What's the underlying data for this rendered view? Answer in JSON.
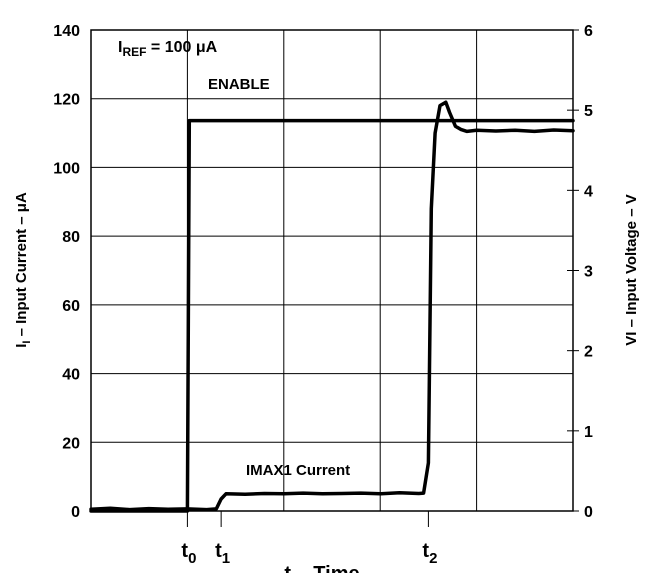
{
  "chart_data": {
    "type": "line",
    "ylabel_left_main": "I",
    "ylabel_left_sub": "I",
    "ylabel_left_rest": " – Input Current – μA",
    "ylabel_right": "VI – Input Voltage – V",
    "xlabel": "t – Time",
    "ylim_left": [
      0,
      140
    ],
    "ylim_right": [
      0,
      6
    ],
    "left_ticks": [
      "0",
      "20",
      "40",
      "60",
      "80",
      "100",
      "120",
      "140"
    ],
    "right_ticks": [
      "0",
      "1",
      "2",
      "3",
      "4",
      "5",
      "6"
    ],
    "x_markers": [
      {
        "main": "t",
        "sub": "0",
        "x": 1.0
      },
      {
        "main": "t",
        "sub": "1",
        "x": 1.35
      },
      {
        "main": "t",
        "sub": "2",
        "x": 3.5
      }
    ],
    "xlim": [
      0,
      5
    ],
    "grid": true,
    "annotations": {
      "iref_main": "I",
      "iref_sub": "REF",
      "iref_rest": " = 100 μA",
      "enable": "ENABLE",
      "imax": "IMAX1 Current"
    },
    "series": [
      {
        "name": "ENABLE",
        "axis": "right",
        "x": [
          0,
          1.0,
          1.02,
          5.0
        ],
        "y": [
          0,
          0,
          4.87,
          4.87
        ]
      },
      {
        "name": "IMAX1 Current",
        "axis": "left",
        "x": [
          0,
          0.2,
          0.4,
          0.6,
          0.8,
          1.0,
          1.2,
          1.3,
          1.35,
          1.4,
          1.6,
          1.8,
          2.0,
          2.2,
          2.4,
          2.6,
          2.8,
          3.0,
          3.2,
          3.4,
          3.45,
          3.5,
          3.53,
          3.57,
          3.62,
          3.68,
          3.72,
          3.78,
          3.84,
          3.9,
          4.0,
          4.2,
          4.4,
          4.6,
          4.8,
          5.0
        ],
        "y": [
          0.5,
          0.8,
          0.4,
          0.7,
          0.5,
          0.6,
          0.4,
          0.6,
          3.5,
          5,
          4.9,
          5.1,
          5,
          5.2,
          5,
          5.1,
          5.2,
          5,
          5.3,
          5.1,
          5.2,
          14,
          88,
          110,
          118,
          119,
          116,
          112,
          111,
          110.5,
          110.8,
          110.6,
          110.8,
          110.5,
          110.9,
          110.7
        ]
      }
    ]
  }
}
